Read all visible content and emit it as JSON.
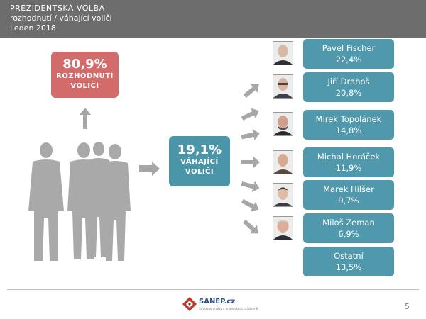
{
  "header": {
    "line1": "PREZIDENTSKÁ VOLBA",
    "line2": "rozhodnutí / váhající voliči",
    "line3": "Leden 2018"
  },
  "decided": {
    "value": "80,9%",
    "label": "ROZHODNUTÍ VOLIČI",
    "color": "#d46b6b"
  },
  "undecided": {
    "value": "19,1%",
    "label": "VÁHAJÍCÍ VOLIČI",
    "color": "#4a95a8"
  },
  "chart_data": {
    "type": "table",
    "categories": [
      "Pavel Fischer",
      "Jiří Drahoš",
      "Mirek Topolánek",
      "Michal Horáček",
      "Marek Hilšer",
      "Miloš Zeman",
      "Ostatní"
    ],
    "values": [
      22.4,
      20.8,
      14.8,
      11.9,
      9.7,
      6.9,
      13.5
    ],
    "value_labels": [
      "22,4%",
      "20,8%",
      "14,8%",
      "11,9%",
      "9,7%",
      "6,9%",
      "13,5%"
    ],
    "accent_color": "#5099ad"
  },
  "footer": {
    "logo_name": "SANEP.cz",
    "logo_sub": "Středisko analýz a empirických průzkumů",
    "page_number": "5"
  }
}
